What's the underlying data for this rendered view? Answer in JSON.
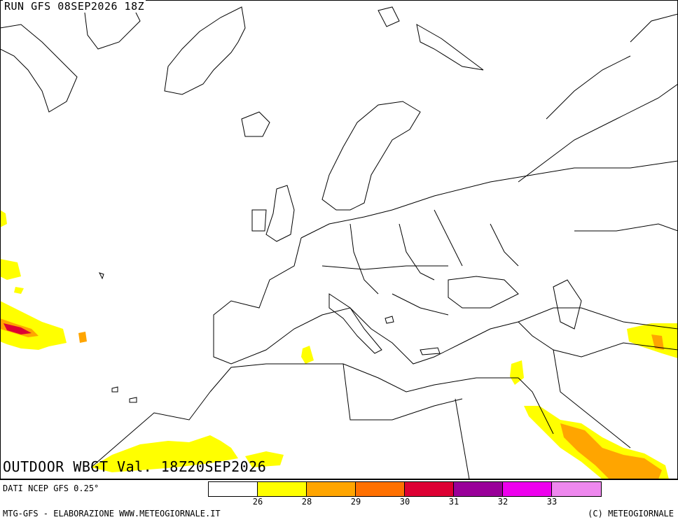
{
  "header": {
    "run_label": "RUN GFS 08SEP2026 18Z"
  },
  "map": {
    "title": "OUTDOOR WBGT Val. 18Z20SEP2026",
    "region": "Europe, North Africa, Middle East",
    "legend": {
      "colors": [
        "#ffffff",
        "#ffff00",
        "#ffa500",
        "#ff7000",
        "#dd0033",
        "#990099",
        "#ee00ee",
        "#ee88ee"
      ],
      "ticks": [
        "26",
        "28",
        "29",
        "30",
        "31",
        "32",
        "33"
      ]
    }
  },
  "footer": {
    "data_source": "DATI NCEP GFS 0.25°",
    "credits_left": "MTG-GFS - ELABORAZIONE WWW.METEOGIORNALE.IT",
    "credits_right": "(C) METEOGIORNALE"
  }
}
